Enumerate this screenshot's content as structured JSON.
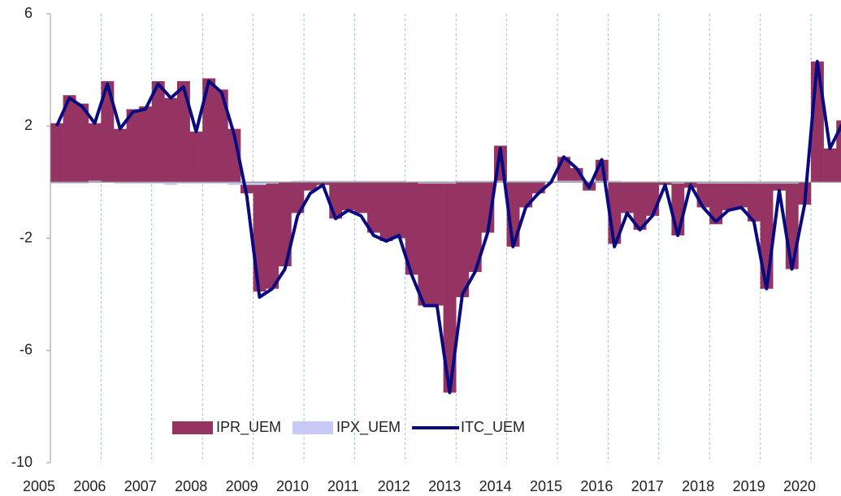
{
  "chart_data": {
    "type": "bar_line",
    "categories": [
      "2005",
      null,
      null,
      null,
      "2006",
      null,
      null,
      null,
      "2007",
      null,
      null,
      null,
      "2008",
      null,
      null,
      null,
      "2009",
      null,
      null,
      null,
      "2010",
      null,
      null,
      null,
      "2011",
      null,
      null,
      null,
      "2012",
      null,
      null,
      null,
      "2013",
      null,
      null,
      null,
      "2014",
      null,
      null,
      null,
      "2015",
      null,
      null,
      null,
      "2016",
      null,
      null,
      null,
      "2017",
      null,
      null,
      null,
      "2018",
      null,
      null,
      null,
      "2019",
      null,
      null,
      null,
      "2020",
      null,
      null
    ],
    "series": [
      {
        "name": "IPR_UEM",
        "color": "#953462",
        "kind": "bar",
        "values": [
          2.1,
          3.1,
          2.8,
          2.1,
          3.6,
          1.9,
          2.6,
          2.7,
          3.6,
          3.0,
          3.6,
          1.8,
          3.7,
          3.3,
          1.9,
          -0.4,
          -3.9,
          -3.8,
          -3.0,
          -1.1,
          -0.3,
          -0.1,
          -1.3,
          -1.0,
          -1.1,
          -1.8,
          -2.1,
          -2.0,
          -3.3,
          -4.4,
          -4.4,
          -7.5,
          -4.1,
          -3.2,
          -1.8,
          1.3,
          -2.3,
          -0.9,
          -0.4,
          0.0,
          0.9,
          0.5,
          -0.3,
          0.8,
          -2.2,
          -1.1,
          -1.7,
          -1.2,
          -0.1,
          -1.9,
          -0.2,
          -0.9,
          -1.5,
          -1.0,
          -0.9,
          -1.4,
          -3.8,
          -0.3,
          -3.1,
          -0.8,
          4.3,
          1.2,
          2.2
        ]
      },
      {
        "name": "IPX_UEM",
        "color": "#c8c8f5",
        "kind": "bar",
        "values": [
          -0.05,
          -0.05,
          -0.05,
          0.05,
          0.0,
          -0.05,
          -0.05,
          -0.05,
          -0.05,
          -0.1,
          -0.05,
          -0.05,
          -0.05,
          -0.05,
          -0.1,
          -0.1,
          -0.1,
          -0.05,
          0.0,
          0.05,
          0.05,
          0.05,
          0.05,
          0.05,
          0.05,
          0.05,
          0.05,
          0.05,
          0.0,
          -0.05,
          -0.05,
          -0.05,
          0.05,
          0.05,
          0.05,
          0.05,
          0.05,
          0.05,
          0.05,
          0.0,
          0.05,
          0.05,
          0.05,
          0.05,
          0.05,
          0.0,
          0.0,
          0.0,
          0.0,
          -0.05,
          0.0,
          -0.05,
          -0.05,
          -0.05,
          -0.05,
          -0.05,
          -0.05,
          -0.05,
          -0.05,
          0.0,
          0.0,
          0.0,
          0.0
        ]
      },
      {
        "name": "ITC_UEM",
        "color": "#0a0a80",
        "kind": "line",
        "values": [
          2.0,
          3.0,
          2.7,
          2.1,
          3.5,
          1.9,
          2.5,
          2.6,
          3.5,
          3.0,
          3.4,
          1.8,
          3.6,
          3.2,
          1.7,
          -0.5,
          -4.1,
          -3.8,
          -3.1,
          -1.2,
          -0.4,
          -0.1,
          -1.3,
          -1.0,
          -1.2,
          -1.9,
          -2.1,
          -1.9,
          -3.3,
          -4.4,
          -4.4,
          -7.5,
          -4.0,
          -3.2,
          -1.8,
          1.2,
          -2.3,
          -0.9,
          -0.4,
          0.0,
          0.9,
          0.5,
          -0.2,
          0.8,
          -2.3,
          -1.1,
          -1.7,
          -1.2,
          -0.1,
          -1.9,
          -0.1,
          -0.9,
          -1.4,
          -1.0,
          -0.9,
          -1.4,
          -3.8,
          -0.3,
          -3.1,
          -0.8,
          4.3,
          1.2,
          2.1
        ]
      }
    ],
    "ylim": [
      -10,
      6
    ],
    "yticks": [
      6,
      2,
      -2,
      -6,
      -10
    ],
    "grid": true,
    "legend": "bottom"
  }
}
